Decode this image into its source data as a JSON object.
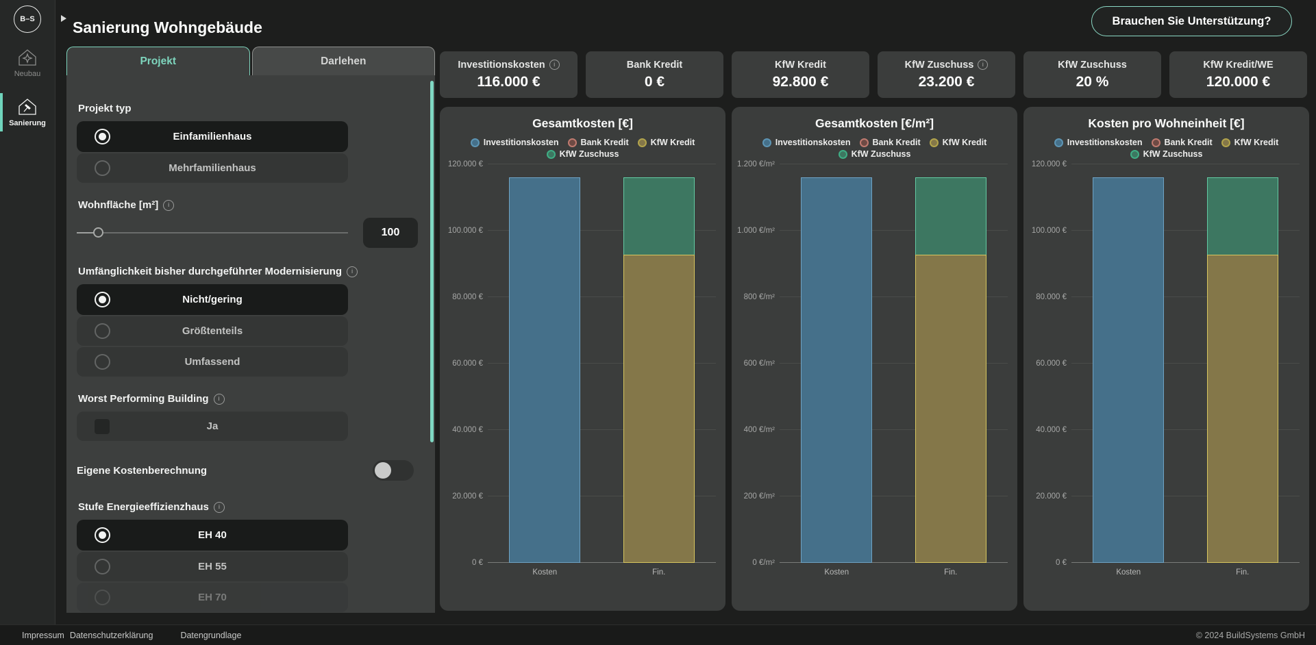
{
  "colors": {
    "accent": "#7fd8c3",
    "panel": "#3d3f3e",
    "page": "#1d1e1d",
    "selected_row": "#191b1a"
  },
  "sidebar": {
    "logo": "B–S",
    "items": [
      {
        "label": "Neubau",
        "active": false
      },
      {
        "label": "Sanierung",
        "active": true
      }
    ]
  },
  "header": {
    "title": "Sanierung Wohngebäude",
    "support_button": "Brauchen Sie Unterstützung?"
  },
  "panel": {
    "tabs": [
      {
        "label": "Projekt",
        "active": true
      },
      {
        "label": "Darlehen",
        "active": false
      }
    ],
    "projekt_typ": {
      "label": "Projekt typ",
      "options": [
        {
          "label": "Einfamilienhaus",
          "selected": true
        },
        {
          "label": "Mehrfamilienhaus",
          "selected": false
        }
      ]
    },
    "wohnflaeche": {
      "label": "Wohnfläche [m²]",
      "value": "100"
    },
    "modernisierung": {
      "label": "Umfänglichkeit bisher durchgeführter Modernisierung",
      "options": [
        {
          "label": "Nicht/gering",
          "selected": true
        },
        {
          "label": "Größtenteils",
          "selected": false
        },
        {
          "label": "Umfassend",
          "selected": false
        }
      ]
    },
    "worst_performing": {
      "label": "Worst Performing Building",
      "checkbox_label": "Ja",
      "checked": false
    },
    "eigene_kosten": {
      "label": "Eigene Kostenberechnung",
      "enabled": false
    },
    "stufe": {
      "label": "Stufe Energieeffizienzhaus",
      "options": [
        {
          "label": "EH 40",
          "selected": true
        },
        {
          "label": "EH 55",
          "selected": false
        },
        {
          "label": "EH 70",
          "selected": false
        }
      ]
    }
  },
  "stats": [
    {
      "label": "Investitionskosten",
      "info": true,
      "value": "116.000 €"
    },
    {
      "label": "Bank Kredit",
      "info": false,
      "value": "0 €"
    },
    {
      "label": "KfW Kredit",
      "info": false,
      "value": "92.800 €"
    },
    {
      "label": "KfW Zuschuss",
      "info": true,
      "value": "23.200 €"
    },
    {
      "label": "KfW Zuschuss",
      "info": false,
      "value": "20 %"
    },
    {
      "label": "KfW Kredit/WE",
      "info": false,
      "value": "120.000 €"
    }
  ],
  "chart_data": [
    {
      "type": "bar",
      "stacked": true,
      "title": "Gesamtkosten [€]",
      "categories": [
        "Kosten",
        "Fin."
      ],
      "ylim": [
        0,
        120000
      ],
      "grid": true,
      "legend_position": "top",
      "yticks": [
        {
          "v": 0,
          "label": "0 €"
        },
        {
          "v": 20000,
          "label": "20.000 €"
        },
        {
          "v": 40000,
          "label": "40.000 €"
        },
        {
          "v": 60000,
          "label": "60.000 €"
        },
        {
          "v": 80000,
          "label": "80.000 €"
        },
        {
          "v": 100000,
          "label": "100.000 €"
        },
        {
          "v": 120000,
          "label": "120.000 €"
        }
      ],
      "series": [
        {
          "name": "Investitionskosten",
          "values": [
            116000,
            0
          ],
          "fill": "#45708a",
          "border": "#6fa3c4",
          "marker": "#5d95b4"
        },
        {
          "name": "Bank Kredit",
          "values": [
            0,
            0
          ],
          "fill": "#6e4a44",
          "border": "#c07b70",
          "marker": "#c07b70"
        },
        {
          "name": "KfW Kredit",
          "values": [
            0,
            92800
          ],
          "fill": "#847749",
          "border": "#d8c75f",
          "marker": "#b2a44c"
        },
        {
          "name": "KfW Zuschuss",
          "values": [
            0,
            23200
          ],
          "fill": "#3d7761",
          "border": "#63cba4",
          "marker": "#3fae85"
        }
      ]
    },
    {
      "type": "bar",
      "stacked": true,
      "title": "Gesamtkosten [€/m²]",
      "categories": [
        "Kosten",
        "Fin."
      ],
      "ylim": [
        0,
        1200
      ],
      "grid": true,
      "legend_position": "top",
      "yticks": [
        {
          "v": 0,
          "label": "0 €/m²"
        },
        {
          "v": 200,
          "label": "200 €/m²"
        },
        {
          "v": 400,
          "label": "400 €/m²"
        },
        {
          "v": 600,
          "label": "600 €/m²"
        },
        {
          "v": 800,
          "label": "800 €/m²"
        },
        {
          "v": 1000,
          "label": "1.000 €/m²"
        },
        {
          "v": 1200,
          "label": "1.200 €/m²"
        }
      ],
      "series": [
        {
          "name": "Investitionskosten",
          "values": [
            1160,
            0
          ],
          "fill": "#45708a",
          "border": "#6fa3c4",
          "marker": "#5d95b4"
        },
        {
          "name": "Bank Kredit",
          "values": [
            0,
            0
          ],
          "fill": "#6e4a44",
          "border": "#c07b70",
          "marker": "#c07b70"
        },
        {
          "name": "KfW Kredit",
          "values": [
            0,
            928
          ],
          "fill": "#847749",
          "border": "#d8c75f",
          "marker": "#b2a44c"
        },
        {
          "name": "KfW Zuschuss",
          "values": [
            0,
            232
          ],
          "fill": "#3d7761",
          "border": "#63cba4",
          "marker": "#3fae85"
        }
      ]
    },
    {
      "type": "bar",
      "stacked": true,
      "title": "Kosten pro Wohneinheit [€]",
      "categories": [
        "Kosten",
        "Fin."
      ],
      "ylim": [
        0,
        120000
      ],
      "grid": true,
      "legend_position": "top",
      "yticks": [
        {
          "v": 0,
          "label": "0 €"
        },
        {
          "v": 20000,
          "label": "20.000 €"
        },
        {
          "v": 40000,
          "label": "40.000 €"
        },
        {
          "v": 60000,
          "label": "60.000 €"
        },
        {
          "v": 80000,
          "label": "80.000 €"
        },
        {
          "v": 100000,
          "label": "100.000 €"
        },
        {
          "v": 120000,
          "label": "120.000 €"
        }
      ],
      "series": [
        {
          "name": "Investitionskosten",
          "values": [
            116000,
            0
          ],
          "fill": "#45708a",
          "border": "#6fa3c4",
          "marker": "#5d95b4"
        },
        {
          "name": "Bank Kredit",
          "values": [
            0,
            0
          ],
          "fill": "#6e4a44",
          "border": "#c07b70",
          "marker": "#c07b70"
        },
        {
          "name": "KfW Kredit",
          "values": [
            0,
            92800
          ],
          "fill": "#847749",
          "border": "#d8c75f",
          "marker": "#b2a44c"
        },
        {
          "name": "KfW Zuschuss",
          "values": [
            0,
            23200
          ],
          "fill": "#3d7761",
          "border": "#63cba4",
          "marker": "#3fae85"
        }
      ]
    }
  ],
  "footer": {
    "links": [
      "Impressum",
      "Datenschutzerklärung",
      "Datengrundlage"
    ],
    "copyright": "© 2024 BuildSystems GmbH"
  }
}
